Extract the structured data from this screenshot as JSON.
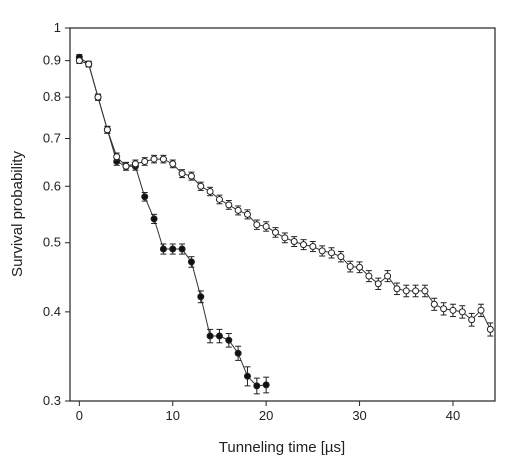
{
  "chart_data": {
    "type": "scatter",
    "title": "",
    "xlabel": "Tunneling time [µs]",
    "ylabel": "Survival probability",
    "xlim": [
      -1,
      44.5
    ],
    "ylim": [
      0.3,
      1.0
    ],
    "y_scale": "log",
    "grid": false,
    "legend": "none",
    "x_ticks": [
      0,
      10,
      20,
      30,
      40
    ],
    "x_tick_labels": [
      "0",
      "10",
      "20",
      "30",
      "40"
    ],
    "y_ticks": [
      0.3,
      0.4,
      0.5,
      0.6,
      0.7,
      0.8,
      0.9,
      1.0
    ],
    "y_tick_labels": [
      "0.3",
      "0.4",
      "0.5",
      "0.6",
      "0.7",
      "0.8",
      "0.9",
      "1"
    ],
    "colors": {
      "axis": "#222222",
      "filled_marker": "#111111",
      "open_marker": "#ffffff",
      "line": "#333333"
    },
    "series": [
      {
        "marker": "filled-circle",
        "x": [
          0,
          1,
          2,
          3,
          4,
          5,
          6,
          7,
          8,
          9,
          10,
          11,
          12,
          13,
          14,
          15,
          16,
          17,
          18,
          19,
          20
        ],
        "y": [
          0.91,
          0.89,
          0.8,
          0.72,
          0.65,
          0.64,
          0.64,
          0.58,
          0.54,
          0.49,
          0.49,
          0.49,
          0.47,
          0.42,
          0.37,
          0.37,
          0.365,
          0.35,
          0.325,
          0.315,
          0.316
        ],
        "err": [
          0.008,
          0.008,
          0.008,
          0.008,
          0.008,
          0.008,
          0.008,
          0.008,
          0.008,
          0.008,
          0.008,
          0.008,
          0.008,
          0.008,
          0.008,
          0.008,
          0.008,
          0.008,
          0.01,
          0.008,
          0.008
        ]
      },
      {
        "marker": "open-circle",
        "x": [
          0,
          1,
          2,
          3,
          4,
          5,
          6,
          7,
          8,
          9,
          10,
          11,
          12,
          13,
          14,
          15,
          16,
          17,
          18,
          19,
          20,
          21,
          22,
          23,
          24,
          25,
          26,
          27,
          28,
          29,
          30,
          31,
          32,
          33,
          34,
          35,
          36,
          37,
          38,
          39,
          40,
          41,
          42,
          43,
          44
        ],
        "y": [
          0.9,
          0.89,
          0.8,
          0.72,
          0.66,
          0.64,
          0.645,
          0.65,
          0.655,
          0.655,
          0.645,
          0.625,
          0.62,
          0.6,
          0.59,
          0.575,
          0.565,
          0.555,
          0.548,
          0.53,
          0.527,
          0.517,
          0.508,
          0.502,
          0.497,
          0.494,
          0.487,
          0.484,
          0.478,
          0.463,
          0.462,
          0.449,
          0.438,
          0.449,
          0.431,
          0.428,
          0.428,
          0.428,
          0.41,
          0.404,
          0.402,
          0.4,
          0.39,
          0.402,
          0.378
        ],
        "err": [
          0.008,
          0.008,
          0.008,
          0.008,
          0.008,
          0.008,
          0.008,
          0.008,
          0.008,
          0.008,
          0.008,
          0.008,
          0.008,
          0.008,
          0.008,
          0.008,
          0.008,
          0.008,
          0.008,
          0.008,
          0.008,
          0.008,
          0.008,
          0.008,
          0.008,
          0.008,
          0.008,
          0.008,
          0.008,
          0.008,
          0.008,
          0.008,
          0.008,
          0.008,
          0.008,
          0.008,
          0.008,
          0.008,
          0.008,
          0.008,
          0.008,
          0.008,
          0.008,
          0.008,
          0.008
        ]
      }
    ]
  }
}
